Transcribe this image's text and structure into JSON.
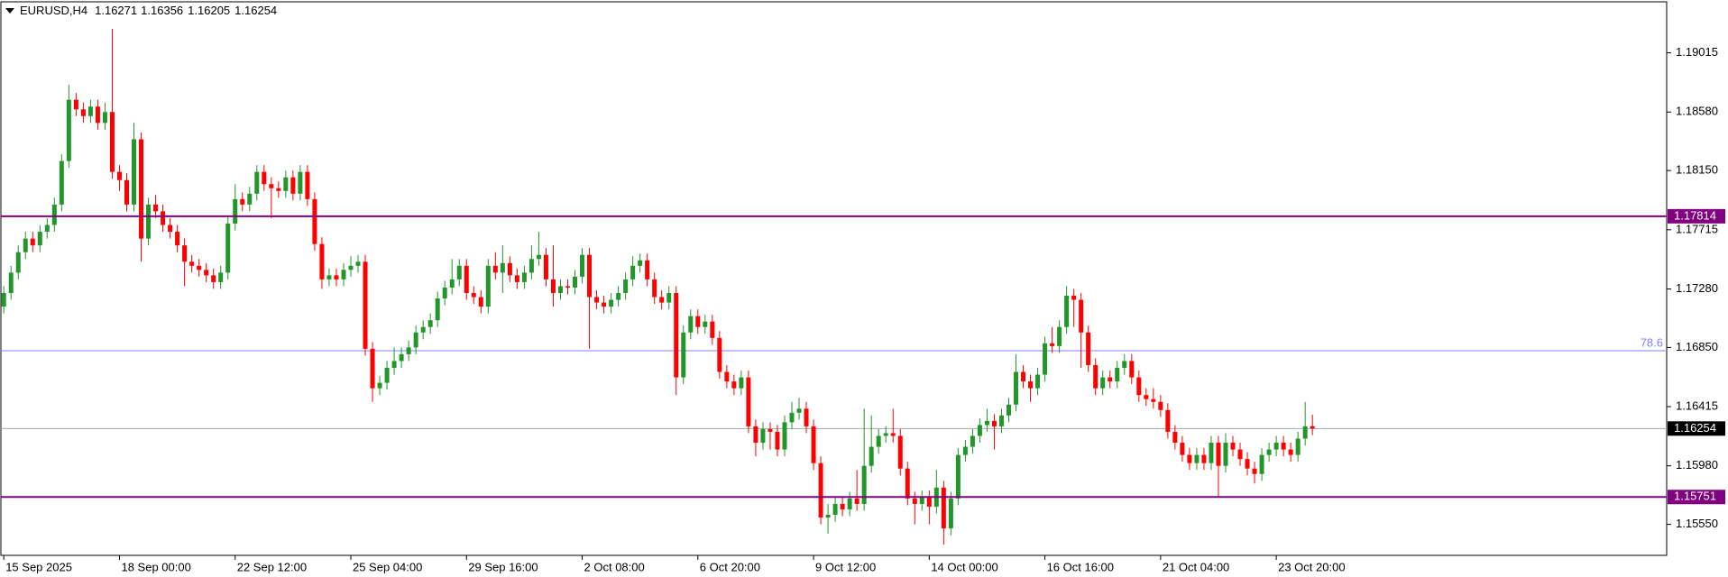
{
  "chart_data": {
    "type": "candlestick",
    "symbol": "EURUSD,H4",
    "up_color": "#22962a",
    "down_color": "#ff0000",
    "xlim": [
      -0.4,
      230
    ],
    "ylim": [
      1.15322,
      1.1939
    ],
    "yticks": [
      1.19015,
      {
        "value": 1.1858,
        "label": "1.18580"
      },
      {
        "value": 1.1815,
        "label": "1.18150"
      },
      1.17715,
      {
        "value": 1.1728,
        "label": "1.17280"
      },
      {
        "value": 1.1685,
        "label": "1.16850"
      },
      1.16415,
      {
        "value": 1.1598,
        "label": "1.15980"
      },
      {
        "value": 1.1555,
        "label": "1.15550"
      }
    ],
    "xticks": [
      {
        "value": 0,
        "label": "15 Sep 2025"
      },
      {
        "value": 16,
        "label": "18 Sep 00:00"
      },
      {
        "value": 32,
        "label": "22 Sep 12:00"
      },
      {
        "value": 48,
        "label": "25 Sep 04:00"
      },
      {
        "value": 64,
        "label": "29 Sep 16:00"
      },
      {
        "value": 80,
        "label": "2 Oct 08:00"
      },
      {
        "value": 96,
        "label": "6 Oct 20:00"
      },
      {
        "value": 112,
        "label": "9 Oct 12:00"
      },
      {
        "value": 128,
        "label": "14 Oct 00:00"
      },
      {
        "value": 144,
        "label": "16 Oct 16:00"
      },
      {
        "value": 160,
        "label": "21 Oct 04:00"
      },
      {
        "value": 176,
        "label": "23 Oct 20:00"
      }
    ],
    "levels": [
      {
        "value": 1.17814,
        "color": "#800080"
      },
      {
        "value": 1.15751,
        "color": "#800080"
      }
    ],
    "fib_level": {
      "value": 1.16826,
      "label": "78.6",
      "color": "#8080ff"
    },
    "price_line_color": "#a0a8b0",
    "ohlc": [
      [
        1.1715,
        1.173,
        1.171,
        1.1725
      ],
      [
        1.1725,
        1.1745,
        1.172,
        1.174
      ],
      [
        1.174,
        1.176,
        1.1735,
        1.1755
      ],
      [
        1.1755,
        1.177,
        1.175,
        1.1765
      ],
      [
        1.1765,
        1.177,
        1.1755,
        1.176
      ],
      [
        1.176,
        1.1775,
        1.1755,
        1.177
      ],
      [
        1.177,
        1.178,
        1.1765,
        1.1775
      ],
      [
        1.1775,
        1.1795,
        1.177,
        1.179
      ],
      [
        1.179,
        1.1827,
        1.1785,
        1.1822
      ],
      [
        1.1822,
        1.1878,
        1.1817,
        1.1867
      ],
      [
        1.1867,
        1.1872,
        1.1855,
        1.186
      ],
      [
        1.186,
        1.1865,
        1.185,
        1.1855
      ],
      [
        1.1855,
        1.1867,
        1.185,
        1.1862
      ],
      [
        1.1862,
        1.1867,
        1.1845,
        1.185
      ],
      [
        1.185,
        1.1865,
        1.1845,
        1.1858
      ],
      [
        1.1858,
        1.1919,
        1.1809,
        1.1814
      ],
      [
        1.1814,
        1.1819,
        1.18,
        1.1808
      ],
      [
        1.1808,
        1.1813,
        1.1785,
        1.179
      ],
      [
        1.179,
        1.185,
        1.1785,
        1.1838
      ],
      [
        1.1838,
        1.1843,
        1.1748,
        1.1765
      ],
      [
        1.1765,
        1.1795,
        1.176,
        1.179
      ],
      [
        1.179,
        1.1797,
        1.178,
        1.1785
      ],
      [
        1.1785,
        1.179,
        1.177,
        1.1775
      ],
      [
        1.1775,
        1.178,
        1.1765,
        1.177
      ],
      [
        1.177,
        1.1775,
        1.1755,
        1.176
      ],
      [
        1.176,
        1.1765,
        1.173,
        1.1748
      ],
      [
        1.1748,
        1.1753,
        1.174,
        1.1745
      ],
      [
        1.1745,
        1.175,
        1.1737,
        1.1742
      ],
      [
        1.1742,
        1.1747,
        1.1733,
        1.1738
      ],
      [
        1.1738,
        1.1743,
        1.1728,
        1.1733
      ],
      [
        1.1733,
        1.1745,
        1.1728,
        1.174
      ],
      [
        1.174,
        1.1781,
        1.1735,
        1.1776
      ],
      [
        1.1776,
        1.1805,
        1.1771,
        1.1794
      ],
      [
        1.1794,
        1.1799,
        1.1785,
        1.179
      ],
      [
        1.179,
        1.1803,
        1.1785,
        1.1798
      ],
      [
        1.1798,
        1.1819,
        1.1793,
        1.1814
      ],
      [
        1.1814,
        1.1819,
        1.18,
        1.1805
      ],
      [
        1.1805,
        1.181,
        1.178,
        1.1802
      ],
      [
        1.1802,
        1.1807,
        1.1795,
        1.18
      ],
      [
        1.18,
        1.1815,
        1.1795,
        1.181
      ],
      [
        1.181,
        1.1815,
        1.1793,
        1.1798
      ],
      [
        1.1798,
        1.1819,
        1.1793,
        1.1814
      ],
      [
        1.1814,
        1.1819,
        1.1789,
        1.1794
      ],
      [
        1.1794,
        1.1799,
        1.1756,
        1.1761
      ],
      [
        1.1761,
        1.1766,
        1.1728,
        1.1735
      ],
      [
        1.1735,
        1.1743,
        1.173,
        1.1738
      ],
      [
        1.1738,
        1.1743,
        1.173,
        1.1735
      ],
      [
        1.1735,
        1.1747,
        1.173,
        1.1742
      ],
      [
        1.1742,
        1.1752,
        1.1737,
        1.1745
      ],
      [
        1.1745,
        1.1753,
        1.174,
        1.1748
      ],
      [
        1.1748,
        1.1753,
        1.1679,
        1.1684
      ],
      [
        1.1684,
        1.1689,
        1.1645,
        1.1655
      ],
      [
        1.1655,
        1.1664,
        1.165,
        1.1659
      ],
      [
        1.1659,
        1.1675,
        1.1654,
        1.167
      ],
      [
        1.167,
        1.1685,
        1.1665,
        1.1675
      ],
      [
        1.1675,
        1.1685,
        1.167,
        1.168
      ],
      [
        1.168,
        1.169,
        1.1675,
        1.1685
      ],
      [
        1.1685,
        1.1701,
        1.168,
        1.1696
      ],
      [
        1.1696,
        1.1705,
        1.1691,
        1.17
      ],
      [
        1.17,
        1.171,
        1.1695,
        1.1705
      ],
      [
        1.1705,
        1.1726,
        1.17,
        1.1721
      ],
      [
        1.1721,
        1.1734,
        1.1716,
        1.1729
      ],
      [
        1.1729,
        1.175,
        1.1724,
        1.1735
      ],
      [
        1.1735,
        1.175,
        1.173,
        1.1745
      ],
      [
        1.1745,
        1.175,
        1.172,
        1.1725
      ],
      [
        1.1725,
        1.173,
        1.1717,
        1.1722
      ],
      [
        1.1722,
        1.1727,
        1.171,
        1.1715
      ],
      [
        1.1715,
        1.175,
        1.171,
        1.1745
      ],
      [
        1.1745,
        1.1755,
        1.1735,
        1.174
      ],
      [
        1.174,
        1.176,
        1.1725,
        1.1747
      ],
      [
        1.1747,
        1.1752,
        1.1733,
        1.1738
      ],
      [
        1.1738,
        1.1743,
        1.1728,
        1.1733
      ],
      [
        1.1733,
        1.1745,
        1.1728,
        1.174
      ],
      [
        1.174,
        1.176,
        1.1735,
        1.175
      ],
      [
        1.175,
        1.177,
        1.1745,
        1.1753
      ],
      [
        1.1753,
        1.1758,
        1.173,
        1.1735
      ],
      [
        1.1735,
        1.176,
        1.1715,
        1.1725
      ],
      [
        1.1725,
        1.1735,
        1.172,
        1.173
      ],
      [
        1.173,
        1.1735,
        1.1724,
        1.1729
      ],
      [
        1.1729,
        1.1742,
        1.1724,
        1.1737
      ],
      [
        1.1737,
        1.1758,
        1.1732,
        1.1753
      ],
      [
        1.1753,
        1.1758,
        1.1684,
        1.1722
      ],
      [
        1.1722,
        1.1727,
        1.1713,
        1.1718
      ],
      [
        1.1718,
        1.1723,
        1.171,
        1.1715
      ],
      [
        1.1715,
        1.1725,
        1.171,
        1.172
      ],
      [
        1.172,
        1.173,
        1.1715,
        1.1725
      ],
      [
        1.1725,
        1.174,
        1.172,
        1.1735
      ],
      [
        1.1735,
        1.1752,
        1.173,
        1.1745
      ],
      [
        1.1745,
        1.1754,
        1.174,
        1.1749
      ],
      [
        1.1749,
        1.1754,
        1.173,
        1.1735
      ],
      [
        1.1735,
        1.174,
        1.1717,
        1.1722
      ],
      [
        1.1722,
        1.1727,
        1.1713,
        1.1718
      ],
      [
        1.1718,
        1.173,
        1.1713,
        1.1725
      ],
      [
        1.1725,
        1.173,
        1.165,
        1.1663
      ],
      [
        1.1663,
        1.1701,
        1.1658,
        1.1696
      ],
      [
        1.1696,
        1.1713,
        1.1691,
        1.1708
      ],
      [
        1.1708,
        1.1713,
        1.1695,
        1.17
      ],
      [
        1.17,
        1.1709,
        1.1695,
        1.1704
      ],
      [
        1.1704,
        1.1709,
        1.1687,
        1.1692
      ],
      [
        1.1692,
        1.1697,
        1.1662,
        1.1667
      ],
      [
        1.1667,
        1.1672,
        1.1655,
        1.166
      ],
      [
        1.166,
        1.1665,
        1.165,
        1.1655
      ],
      [
        1.1655,
        1.1668,
        1.165,
        1.1663
      ],
      [
        1.1663,
        1.1668,
        1.1622,
        1.1627
      ],
      [
        1.1627,
        1.1632,
        1.1605,
        1.1615
      ],
      [
        1.1615,
        1.163,
        1.161,
        1.1625
      ],
      [
        1.1625,
        1.163,
        1.161,
        1.1623
      ],
      [
        1.1623,
        1.1628,
        1.1605,
        1.161
      ],
      [
        1.161,
        1.1635,
        1.1605,
        1.163
      ],
      [
        1.163,
        1.1645,
        1.1625,
        1.1637
      ],
      [
        1.1637,
        1.1648,
        1.1632,
        1.164
      ],
      [
        1.164,
        1.1645,
        1.1622,
        1.1627
      ],
      [
        1.1627,
        1.1632,
        1.1595,
        1.16
      ],
      [
        1.16,
        1.1605,
        1.1555,
        1.156
      ],
      [
        1.156,
        1.157,
        1.1548,
        1.1562
      ],
      [
        1.1562,
        1.1575,
        1.1557,
        1.157
      ],
      [
        1.157,
        1.1575,
        1.1561,
        1.1566
      ],
      [
        1.1566,
        1.1579,
        1.1561,
        1.1574
      ],
      [
        1.1574,
        1.1595,
        1.1565,
        1.157
      ],
      [
        1.157,
        1.164,
        1.1565,
        1.1598
      ],
      [
        1.1598,
        1.1635,
        1.1593,
        1.1612
      ],
      [
        1.1612,
        1.1625,
        1.1607,
        1.162
      ],
      [
        1.162,
        1.1627,
        1.1615,
        1.1622
      ],
      [
        1.1622,
        1.164,
        1.1615,
        1.162
      ],
      [
        1.162,
        1.1625,
        1.1591,
        1.1596
      ],
      [
        1.1596,
        1.1601,
        1.1569,
        1.1574
      ],
      [
        1.1574,
        1.1579,
        1.1555,
        1.157
      ],
      [
        1.157,
        1.158,
        1.1565,
        1.1575
      ],
      [
        1.1575,
        1.158,
        1.1555,
        1.1568
      ],
      [
        1.1568,
        1.1595,
        1.1563,
        1.1582
      ],
      [
        1.1582,
        1.1587,
        1.154,
        1.1552
      ],
      [
        1.1552,
        1.1579,
        1.1547,
        1.1574
      ],
      [
        1.1574,
        1.1611,
        1.1569,
        1.1606
      ],
      [
        1.1606,
        1.1617,
        1.1601,
        1.1612
      ],
      [
        1.1612,
        1.1625,
        1.1607,
        1.162
      ],
      [
        1.162,
        1.1633,
        1.1615,
        1.1628
      ],
      [
        1.1628,
        1.164,
        1.1623,
        1.1631
      ],
      [
        1.1631,
        1.1636,
        1.161,
        1.1627
      ],
      [
        1.1627,
        1.164,
        1.1622,
        1.1635
      ],
      [
        1.1635,
        1.1648,
        1.163,
        1.1643
      ],
      [
        1.1643,
        1.168,
        1.1638,
        1.1667
      ],
      [
        1.1667,
        1.1672,
        1.1655,
        1.166
      ],
      [
        1.166,
        1.1665,
        1.1645,
        1.1655
      ],
      [
        1.1655,
        1.167,
        1.165,
        1.1665
      ],
      [
        1.1665,
        1.1693,
        1.166,
        1.1688
      ],
      [
        1.1688,
        1.17,
        1.1681,
        1.1686
      ],
      [
        1.1686,
        1.1705,
        1.1681,
        1.17
      ],
      [
        1.17,
        1.173,
        1.1695,
        1.1723
      ],
      [
        1.1723,
        1.1728,
        1.17,
        1.172
      ],
      [
        1.172,
        1.1725,
        1.167,
        1.1696
      ],
      [
        1.1696,
        1.1701,
        1.1667,
        1.1672
      ],
      [
        1.1672,
        1.1677,
        1.165,
        1.1655
      ],
      [
        1.1655,
        1.1668,
        1.165,
        1.1663
      ],
      [
        1.1663,
        1.1668,
        1.1655,
        1.166
      ],
      [
        1.166,
        1.1675,
        1.1655,
        1.167
      ],
      [
        1.167,
        1.168,
        1.1665,
        1.1675
      ],
      [
        1.1675,
        1.168,
        1.1658,
        1.1663
      ],
      [
        1.1663,
        1.1668,
        1.1645,
        1.165
      ],
      [
        1.165,
        1.1655,
        1.1642,
        1.1647
      ],
      [
        1.1647,
        1.1655,
        1.164,
        1.1645
      ],
      [
        1.1645,
        1.165,
        1.1634,
        1.1639
      ],
      [
        1.1639,
        1.1644,
        1.1618,
        1.1623
      ],
      [
        1.1623,
        1.1628,
        1.161,
        1.1615
      ],
      [
        1.1615,
        1.162,
        1.1601,
        1.1606
      ],
      [
        1.1606,
        1.1611,
        1.1595,
        1.16
      ],
      [
        1.16,
        1.1611,
        1.1595,
        1.1606
      ],
      [
        1.1606,
        1.1611,
        1.1595,
        1.16
      ],
      [
        1.16,
        1.162,
        1.1595,
        1.1615
      ],
      [
        1.1615,
        1.162,
        1.1575,
        1.1598
      ],
      [
        1.1598,
        1.1622,
        1.1593,
        1.1615
      ],
      [
        1.1615,
        1.162,
        1.1605,
        1.161
      ],
      [
        1.161,
        1.1615,
        1.1598,
        1.1603
      ],
      [
        1.1603,
        1.1608,
        1.1591,
        1.1596
      ],
      [
        1.1596,
        1.1601,
        1.1585,
        1.1592
      ],
      [
        1.1592,
        1.1611,
        1.1587,
        1.1606
      ],
      [
        1.1606,
        1.1615,
        1.1601,
        1.161
      ],
      [
        1.161,
        1.162,
        1.1605,
        1.1615
      ],
      [
        1.1615,
        1.162,
        1.1605,
        1.161
      ],
      [
        1.161,
        1.1615,
        1.1601,
        1.1606
      ],
      [
        1.1606,
        1.1623,
        1.1601,
        1.1618
      ],
      [
        1.1618,
        1.1645,
        1.1613,
        1.1627
      ],
      [
        1.16271,
        1.16356,
        1.16205,
        1.16254
      ]
    ]
  }
}
